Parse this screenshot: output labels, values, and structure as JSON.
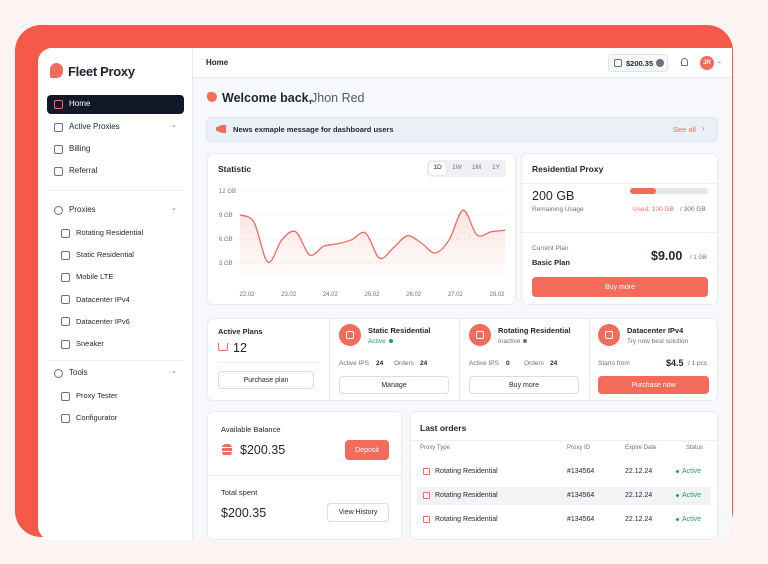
{
  "sidebar": {
    "brand": "Fleet Proxy",
    "main": [
      "Home",
      "Active Proxies",
      "Billing",
      "Referral"
    ],
    "sections": [
      {
        "title": "Proxies",
        "items": [
          "Rotating Residential",
          "Static Residential",
          "Mobile LTE",
          "Datacenter IPv4",
          "Datacenter IPv6",
          "Sneaker"
        ]
      },
      {
        "title": "Tools",
        "items": [
          "Proxy Tester",
          "Configurator"
        ]
      }
    ]
  },
  "topbar": {
    "page": "Home",
    "balance": "$200.35",
    "avatar": "JR"
  },
  "welcome": {
    "greeting": "Welcome back,",
    "name": "Jhon Red"
  },
  "news": {
    "message": "News exmaple message for dashboard users",
    "link": "See all"
  },
  "statistic": {
    "title": "Statistic",
    "ranges": [
      "1D",
      "1W",
      "1M",
      "1Y"
    ],
    "chart": {
      "type": "line",
      "x_labels": [
        "22.02",
        "23.02",
        "24.02",
        "25.02",
        "26.02",
        "27.02",
        "28.02"
      ],
      "values": [
        9,
        8.1,
        3.1,
        5.9,
        6.9,
        4,
        5.1,
        5.4,
        5.9,
        6.75,
        3.6,
        4.9,
        6.4,
        5.5,
        4.25,
        5.9,
        9.6,
        6.5,
        6.9,
        7.1
      ],
      "ylim": [
        2,
        12
      ],
      "yticks": [
        {
          "value": 3,
          "label": "3 GB"
        },
        {
          "value": 6,
          "label": "6 GB"
        },
        {
          "value": 9,
          "label": "9 GB"
        },
        {
          "value": 12,
          "label": "12 GB"
        }
      ],
      "color": "#f26b5b",
      "grid": true
    }
  },
  "residential": {
    "title": "Residential Proxy",
    "amount": "200 GB",
    "amount_label": "Remaining Usage",
    "used_text": "Used: 100 GB",
    "total_text": "/ 300 GB",
    "progress": {
      "value": 100,
      "max": 300
    },
    "plan_label": "Current Plan",
    "plan": "Basic Plan",
    "price": "$9.00",
    "price_unit": "/ 1 GB",
    "button": "Buy more"
  },
  "plans": {
    "title": "Active Plans",
    "count": "12",
    "button": "Purchase plan"
  },
  "products": [
    {
      "name": "Static Residential",
      "status": "Active",
      "stats": [
        {
          "label": "Active IPS",
          "value": "24"
        },
        {
          "label": "Orders",
          "value": "24"
        }
      ],
      "button": "Manage"
    },
    {
      "name": "Rotating Residential",
      "status": "Inactive",
      "stats": [
        {
          "label": "Active IPS",
          "value": "0"
        },
        {
          "label": "Orders",
          "value": "24"
        }
      ],
      "button": "Buy more"
    },
    {
      "name": "Datacenter IPv4",
      "status": "Try now best solution",
      "price_label": "Starts from",
      "price": "$4.5",
      "price_unit": "/ 1 pcs",
      "button": "Purchase now"
    }
  ],
  "balance": {
    "title": "Available Balance",
    "amount": "$200.35",
    "button": "Deposit",
    "spent_title": "Total spent",
    "spent": "$200.35",
    "history_button": "View History"
  },
  "orders": {
    "title": "Last orders",
    "columns": [
      "Proxy Type",
      "Proxy ID",
      "Expire Date",
      "Status"
    ],
    "rows": [
      [
        "Rotating Residential",
        "#134564",
        "22.12.24",
        "Active"
      ],
      [
        "Rotating Residential",
        "#134564",
        "22.12.24",
        "Active"
      ],
      [
        "Rotating Residential",
        "#134564",
        "22.12.24",
        "Active"
      ]
    ]
  }
}
